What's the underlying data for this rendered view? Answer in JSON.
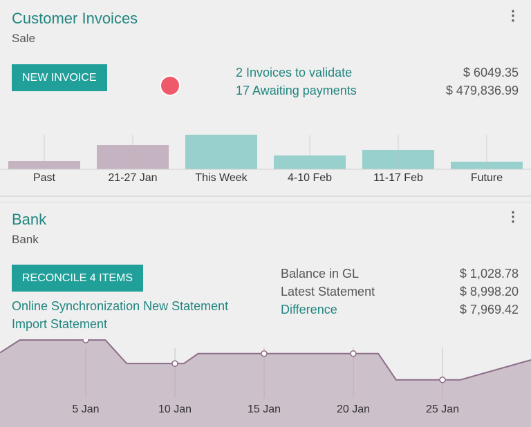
{
  "invoices": {
    "title": "Customer Invoices",
    "subtitle": "Sale",
    "new_button": "NEW INVOICE",
    "links": [
      {
        "label": "2 Invoices to validate",
        "amount": "$ 6049.35"
      },
      {
        "label": "17 Awaiting payments",
        "amount": "$ 479,836.99"
      }
    ],
    "chart_data": {
      "type": "bar",
      "categories": [
        "Past",
        "21-27 Jan",
        "This Week",
        "4-10 Feb",
        "11-17 Feb",
        "Future"
      ],
      "values": [
        12,
        35,
        50,
        20,
        28,
        11
      ],
      "colors": [
        "#c5b3c2",
        "#c5b3c2",
        "#98d0cd",
        "#98d0cd",
        "#98d0cd",
        "#98d0cd"
      ]
    }
  },
  "bank": {
    "title": "Bank",
    "subtitle": "Bank",
    "reconcile_button": "RECONCILE 4 ITEMS",
    "links": [
      "Online Synchronization New Statement",
      "Import Statement"
    ],
    "balances": [
      {
        "label": "Balance in GL",
        "amount": "$ 1,028.78",
        "link": false
      },
      {
        "label": "Latest Statement",
        "amount": "$ 8,998.20",
        "link": false
      },
      {
        "label": "Difference",
        "amount": "$ 7,969.42",
        "link": true
      }
    ],
    "chart_data": {
      "type": "area",
      "x_ticks": [
        "5 Jan",
        "10 Jan",
        "15 Jan",
        "20 Jan",
        "25 Jan"
      ],
      "x_tick_days": [
        5,
        10,
        15,
        20,
        25
      ],
      "x": [
        0.2,
        1.3,
        5,
        6.1,
        7.3,
        10,
        10.5,
        11.3,
        15,
        20,
        21.4,
        22.4,
        25,
        26,
        30
      ],
      "y": [
        76,
        90,
        90,
        90,
        64,
        64,
        64,
        75,
        75,
        75,
        75,
        46,
        46,
        46,
        68
      ],
      "markers": [
        5,
        10,
        15,
        20,
        25
      ],
      "color": "#8d6d88",
      "fill": "#ccc0ca"
    }
  }
}
